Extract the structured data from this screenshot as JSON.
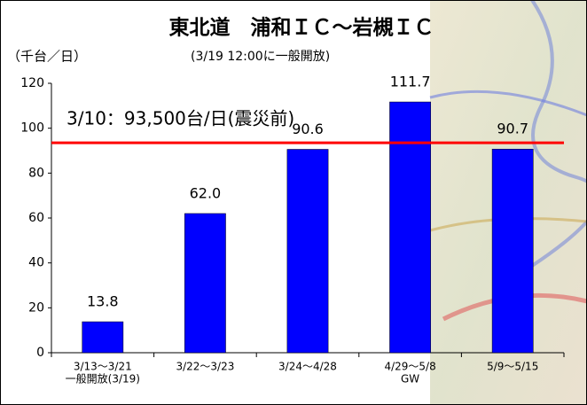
{
  "chart_data": {
    "type": "bar",
    "title": "東北道　浦和ＩＣ～岩槻ＩＣ",
    "subtitle": "(3/19 12:00に一般開放)",
    "y_label": "（千台／日）",
    "categories": [
      [
        "3/13～3/21",
        "一般開放(3/19)"
      ],
      [
        "3/22～3/23"
      ],
      [
        "3/24～4/28"
      ],
      [
        "4/29～5/8",
        "GW"
      ],
      [
        "5/9～5/15"
      ]
    ],
    "values": [
      13.8,
      62.0,
      90.6,
      111.7,
      90.7
    ],
    "value_labels": [
      "13.8",
      "62.0",
      "90.6",
      "111.7",
      "90.7"
    ],
    "color": "#0000ff",
    "reference_line": {
      "value": 93.5,
      "label": "3/10：93,500台/日(震災前)",
      "color": "#ff0000"
    },
    "ylim": [
      0,
      120
    ],
    "yticks": [
      0,
      20,
      40,
      60,
      80,
      100,
      120
    ],
    "grid": false
  }
}
